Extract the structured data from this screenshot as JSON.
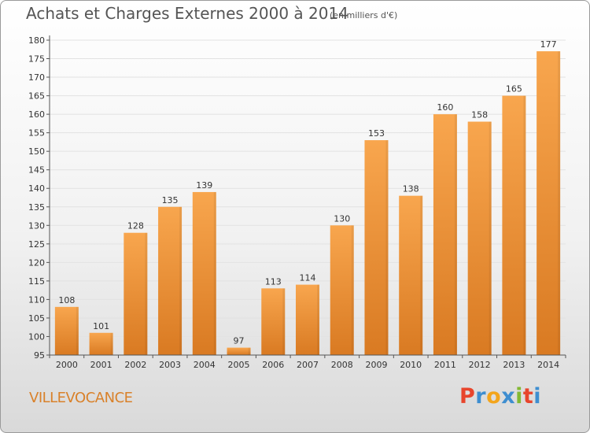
{
  "header": {
    "title": "Achats et Charges Externes 2000 à 2014",
    "subtitle": "(en milliers d'€)"
  },
  "footer": {
    "commune": "VILLEVOCANCE",
    "logo_text": "Proxiti",
    "logo_colors": [
      "#e8452c",
      "#3e8ed0",
      "#f3a51c",
      "#3e8ed0",
      "#83b933",
      "#e8452c",
      "#3e8ed0"
    ]
  },
  "colors": {
    "bar_light": "#f8a64e",
    "bar_dark": "#d97a22",
    "axis": "#555555",
    "grid": "#e2e2e2"
  },
  "chart_data": {
    "type": "bar",
    "categories": [
      "2000",
      "2001",
      "2002",
      "2003",
      "2004",
      "2005",
      "2006",
      "2007",
      "2008",
      "2009",
      "2010",
      "2011",
      "2012",
      "2013",
      "2014"
    ],
    "values": [
      108,
      101,
      128,
      135,
      139,
      97,
      113,
      114,
      130,
      153,
      138,
      160,
      158,
      165,
      177
    ],
    "data_labels": [
      "108",
      "101",
      "128",
      "135",
      "139",
      "97",
      "113",
      "114",
      "130",
      "153",
      "138",
      "160",
      "158",
      "165",
      "177"
    ],
    "y_ticks": [
      95,
      100,
      105,
      110,
      115,
      120,
      125,
      130,
      135,
      140,
      145,
      150,
      155,
      160,
      165,
      170,
      175,
      180
    ],
    "ylim": [
      95,
      180
    ],
    "grid": true
  }
}
